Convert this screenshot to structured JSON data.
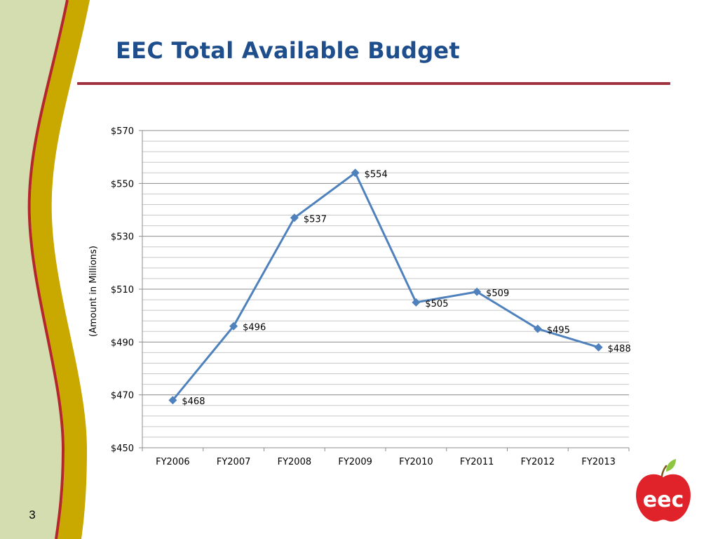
{
  "slide": {
    "title": "EEC Total Available Budget",
    "number": "3",
    "logo_text": "eec"
  },
  "colors": {
    "title": "#1F4E8C",
    "rule": "#A0313E",
    "series_line": "#4F81BD",
    "left_panel_green": "#D3DDB0",
    "left_band_gold": "#C9A800",
    "left_band_red": "#B5262C",
    "logo_red": "#E0222B",
    "logo_leaf": "#8DC63F"
  },
  "chart_data": {
    "type": "line",
    "title": "",
    "xlabel": "",
    "ylabel": "(Amount in Millions)",
    "categories": [
      "FY2006",
      "FY2007",
      "FY2008",
      "FY2009",
      "FY2010",
      "FY2011",
      "FY2012",
      "FY2013"
    ],
    "series": [
      {
        "values": [
          468,
          496,
          537,
          554,
          505,
          509,
          495,
          488
        ],
        "labels": [
          "$468",
          "$496",
          "$537",
          "$554",
          "$505",
          "$509",
          "$495",
          "$488"
        ],
        "marker": "diamond"
      }
    ],
    "ylim": [
      450,
      570
    ],
    "yticks": [
      450,
      470,
      490,
      510,
      530,
      550,
      570
    ],
    "ytick_labels": [
      "$450",
      "$470",
      "$490",
      "$510",
      "$530",
      "$550",
      "$570"
    ],
    "minor_grid_step": 4,
    "grid": true,
    "legend": "none"
  }
}
